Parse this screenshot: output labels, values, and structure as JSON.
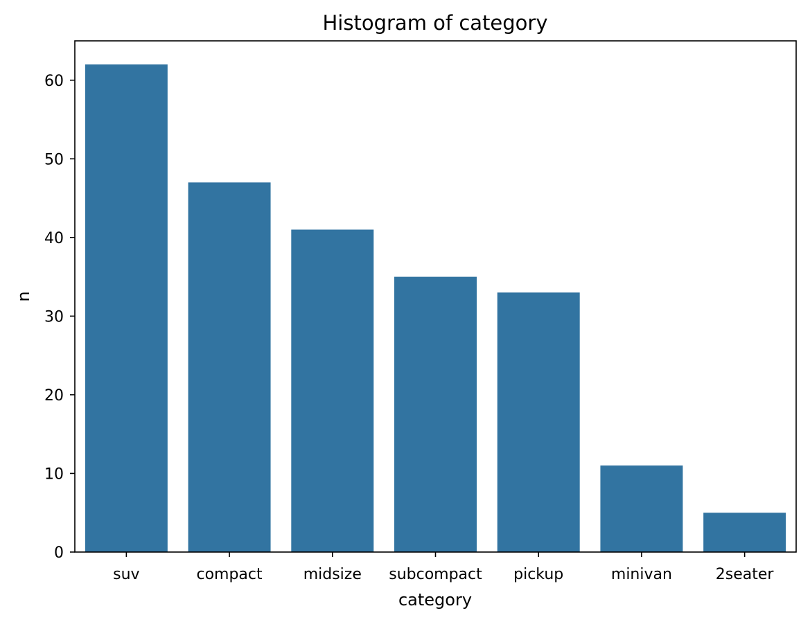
{
  "chart_data": {
    "type": "bar",
    "title": "Histogram of category",
    "xlabel": "category",
    "ylabel": "n",
    "categories": [
      "suv",
      "compact",
      "midsize",
      "subcompact",
      "pickup",
      "minivan",
      "2seater"
    ],
    "values": [
      62,
      47,
      41,
      35,
      33,
      11,
      5
    ],
    "ylim": [
      0,
      65
    ],
    "yticks": [
      0,
      10,
      20,
      30,
      40,
      50,
      60
    ],
    "bar_color": "#3274a1",
    "grid": false
  }
}
